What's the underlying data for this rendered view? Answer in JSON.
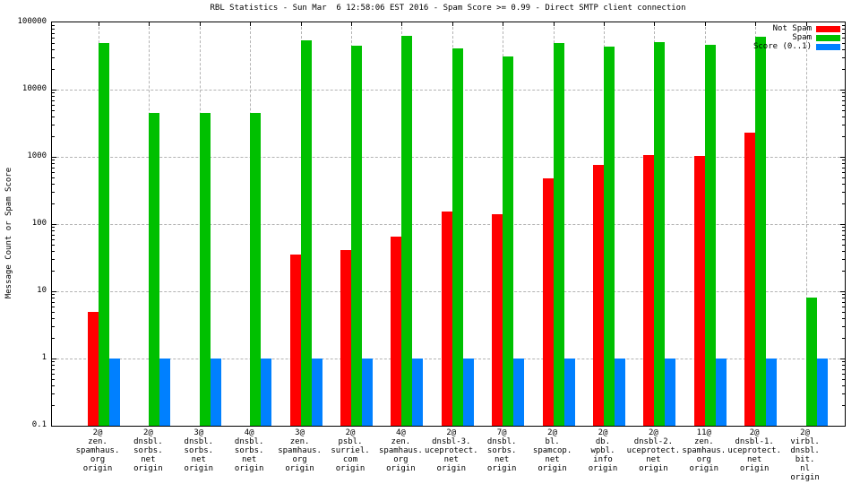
{
  "chart_data": {
    "type": "bar",
    "title": "RBL Statistics - Sun Mar  6 12:58:06 EST 2016 - Spam Score >= 0.99 - Direct SMTP client connection",
    "ylabel": "Message Count or Spam Score",
    "xlabel": "",
    "yscale": "log",
    "ylim": [
      0.1,
      100000
    ],
    "yticks": [
      100000,
      10000,
      1000,
      100,
      10,
      1,
      0.1
    ],
    "grid": true,
    "legend_position": "top-right-inside",
    "colors": {
      "not_spam": "#ff0000",
      "spam": "#00c000",
      "score": "#0080ff",
      "grid": "#b3b3b3",
      "axis": "#000000",
      "background": "#ffffff"
    },
    "categories": [
      "2@\nzen.\nspamhaus.\norg\norigin",
      "2@\ndnsbl.\nsorbs.\nnet\norigin",
      "3@\ndnsbl.\nsorbs.\nnet\norigin",
      "4@\ndnsbl.\nsorbs.\nnet\norigin",
      "3@\nzen.\nspamhaus.\norg\norigin",
      "2@\npsbl.\nsurriel.\ncom\norigin",
      "4@\nzen.\nspamhaus.\norg\norigin",
      "2@\ndnsbl-3.\nuceprotect.\nnet\norigin",
      "7@\ndnsbl.\nsorbs.\nnet\norigin",
      "2@\nbl.\nspamcop.\nnet\norigin",
      "2@\ndb.\nwpbl.\ninfo\norigin",
      "2@\ndnsbl-2.\nuceprotect.\nnet\norigin",
      "11@\nzen.\nspamhaus.\norg\norigin",
      "2@\ndnsbl-1.\nuceprotect.\nnet\norigin",
      "2@\nvirbl.\ndnsbl.\nbit.\nnl\norigin"
    ],
    "series": [
      {
        "name": "Not Spam",
        "color_key": "not_spam",
        "values": [
          5,
          0,
          0,
          0,
          35,
          41,
          65,
          155,
          140,
          480,
          770,
          1060,
          1040,
          2300,
          0
        ]
      },
      {
        "name": "Spam",
        "color_key": "spam",
        "values": [
          49000,
          4500,
          4500,
          4500,
          54000,
          45000,
          63000,
          41000,
          31000,
          49000,
          44000,
          51000,
          47000,
          61000,
          8
        ]
      },
      {
        "name": "Score (0..1)",
        "color_key": "score",
        "values": [
          1,
          1,
          1,
          1,
          1,
          1,
          1,
          1,
          1,
          1,
          1,
          1,
          1,
          1,
          1
        ]
      }
    ]
  }
}
